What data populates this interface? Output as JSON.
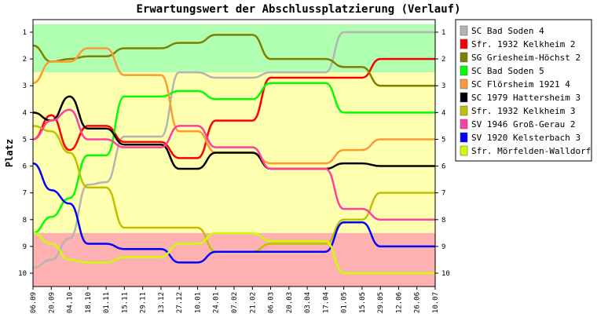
{
  "chart_data": {
    "type": "line",
    "title": "Erwartungswert der Abschlussplatzierung (Verlauf)",
    "ylabel": "Platz",
    "ylim": [
      1,
      10
    ],
    "y_axis_inverted": true,
    "y_ticks": [
      "1",
      "2",
      "3",
      "4",
      "5",
      "6",
      "7",
      "8",
      "9",
      "10"
    ],
    "x": [
      "06.09",
      "20.09",
      "04.10",
      "18.10",
      "01.11",
      "15.11",
      "29.11",
      "13.12",
      "27.12",
      "10.01",
      "24.01",
      "07.02",
      "21.02",
      "06.03",
      "20.03",
      "03.04",
      "17.04",
      "01.05",
      "15.05",
      "29.05",
      "12.06",
      "26.06",
      "10.07"
    ],
    "bands": [
      {
        "from": 0.7,
        "to": 2.5,
        "color": "#b0ffb0"
      },
      {
        "from": 2.5,
        "to": 8.5,
        "color": "#ffffb0"
      },
      {
        "from": 8.5,
        "to": 10.5,
        "color": "#ffb0b0"
      }
    ],
    "legend_position": "right",
    "series": [
      {
        "name": "SC Bad Soden 4",
        "color": "#b4b4b4",
        "values": [
          9.8,
          9.5,
          8.7,
          6.7,
          6.6,
          4.9,
          4.9,
          4.9,
          2.5,
          2.5,
          2.7,
          2.7,
          2.7,
          2.5,
          2.5,
          2.5,
          2.5,
          1.0,
          1.0,
          1.0,
          1.0,
          1.0,
          1.0
        ]
      },
      {
        "name": "Sfr. 1932 Kelkheim 2",
        "color": "#ff0000",
        "values": [
          5.0,
          4.1,
          5.4,
          4.5,
          4.5,
          5.1,
          5.1,
          5.1,
          5.7,
          5.7,
          4.3,
          4.3,
          4.3,
          2.7,
          2.7,
          2.7,
          2.7,
          2.7,
          2.7,
          2.0,
          2.0,
          2.0,
          2.0
        ]
      },
      {
        "name": "SG Griesheim-Höchst 2",
        "color": "#808000",
        "values": [
          1.5,
          2.1,
          2.0,
          1.9,
          1.9,
          1.6,
          1.6,
          1.6,
          1.4,
          1.4,
          1.1,
          1.1,
          1.1,
          2.0,
          2.0,
          2.0,
          2.0,
          2.3,
          2.3,
          3.0,
          3.0,
          3.0,
          3.0
        ]
      },
      {
        "name": "SC Bad Soden 5",
        "color": "#00ff00",
        "values": [
          8.5,
          7.9,
          7.2,
          5.6,
          5.6,
          3.4,
          3.4,
          3.4,
          3.2,
          3.2,
          3.5,
          3.5,
          3.5,
          2.9,
          2.9,
          2.9,
          2.9,
          4.0,
          4.0,
          4.0,
          4.0,
          4.0,
          4.0
        ]
      },
      {
        "name": "SC Flörsheim 1921 4",
        "color": "#ff9933",
        "values": [
          2.9,
          2.1,
          2.1,
          1.6,
          1.6,
          2.6,
          2.6,
          2.6,
          4.7,
          4.7,
          5.5,
          5.5,
          5.5,
          5.9,
          5.9,
          5.9,
          5.9,
          5.4,
          5.4,
          5.0,
          5.0,
          5.0,
          5.0
        ]
      },
      {
        "name": "SC 1979 Hattersheim 3",
        "color": "#000000",
        "values": [
          4.0,
          4.3,
          3.4,
          4.6,
          4.6,
          5.2,
          5.2,
          5.2,
          6.1,
          6.1,
          5.5,
          5.5,
          5.5,
          6.1,
          6.1,
          6.1,
          6.1,
          5.9,
          5.9,
          6.0,
          6.0,
          6.0,
          6.0
        ]
      },
      {
        "name": "Sfr. 1932 Kelkheim 3",
        "color": "#c0c000",
        "values": [
          4.5,
          4.7,
          5.5,
          6.8,
          6.8,
          8.3,
          8.3,
          8.3,
          8.3,
          8.3,
          9.2,
          9.2,
          9.2,
          8.9,
          8.9,
          8.9,
          8.9,
          8.0,
          8.0,
          7.0,
          7.0,
          7.0,
          7.0
        ]
      },
      {
        "name": "SV 1946 Groß-Gerau 2",
        "color": "#ff40a0",
        "values": [
          5.0,
          4.3,
          3.9,
          5.0,
          5.0,
          5.3,
          5.3,
          5.3,
          4.5,
          4.5,
          5.3,
          5.3,
          5.3,
          6.1,
          6.1,
          6.1,
          6.1,
          7.6,
          7.6,
          8.0,
          8.0,
          8.0,
          8.0
        ]
      },
      {
        "name": "SV 1920 Kelsterbach 3",
        "color": "#0000ff",
        "values": [
          5.9,
          6.9,
          7.4,
          8.9,
          8.9,
          9.1,
          9.1,
          9.1,
          9.6,
          9.6,
          9.2,
          9.2,
          9.2,
          9.2,
          9.2,
          9.2,
          9.2,
          8.1,
          8.1,
          9.0,
          9.0,
          9.0,
          9.0
        ]
      },
      {
        "name": "Sfr. Mörfelden-Walldorf 2",
        "color": "#ccff00",
        "values": [
          8.5,
          8.9,
          9.5,
          9.6,
          9.6,
          9.4,
          9.4,
          9.4,
          8.9,
          8.9,
          8.5,
          8.5,
          8.5,
          8.8,
          8.8,
          8.8,
          8.8,
          10.0,
          10.0,
          10.0,
          10.0,
          10.0,
          10.0
        ]
      }
    ]
  }
}
